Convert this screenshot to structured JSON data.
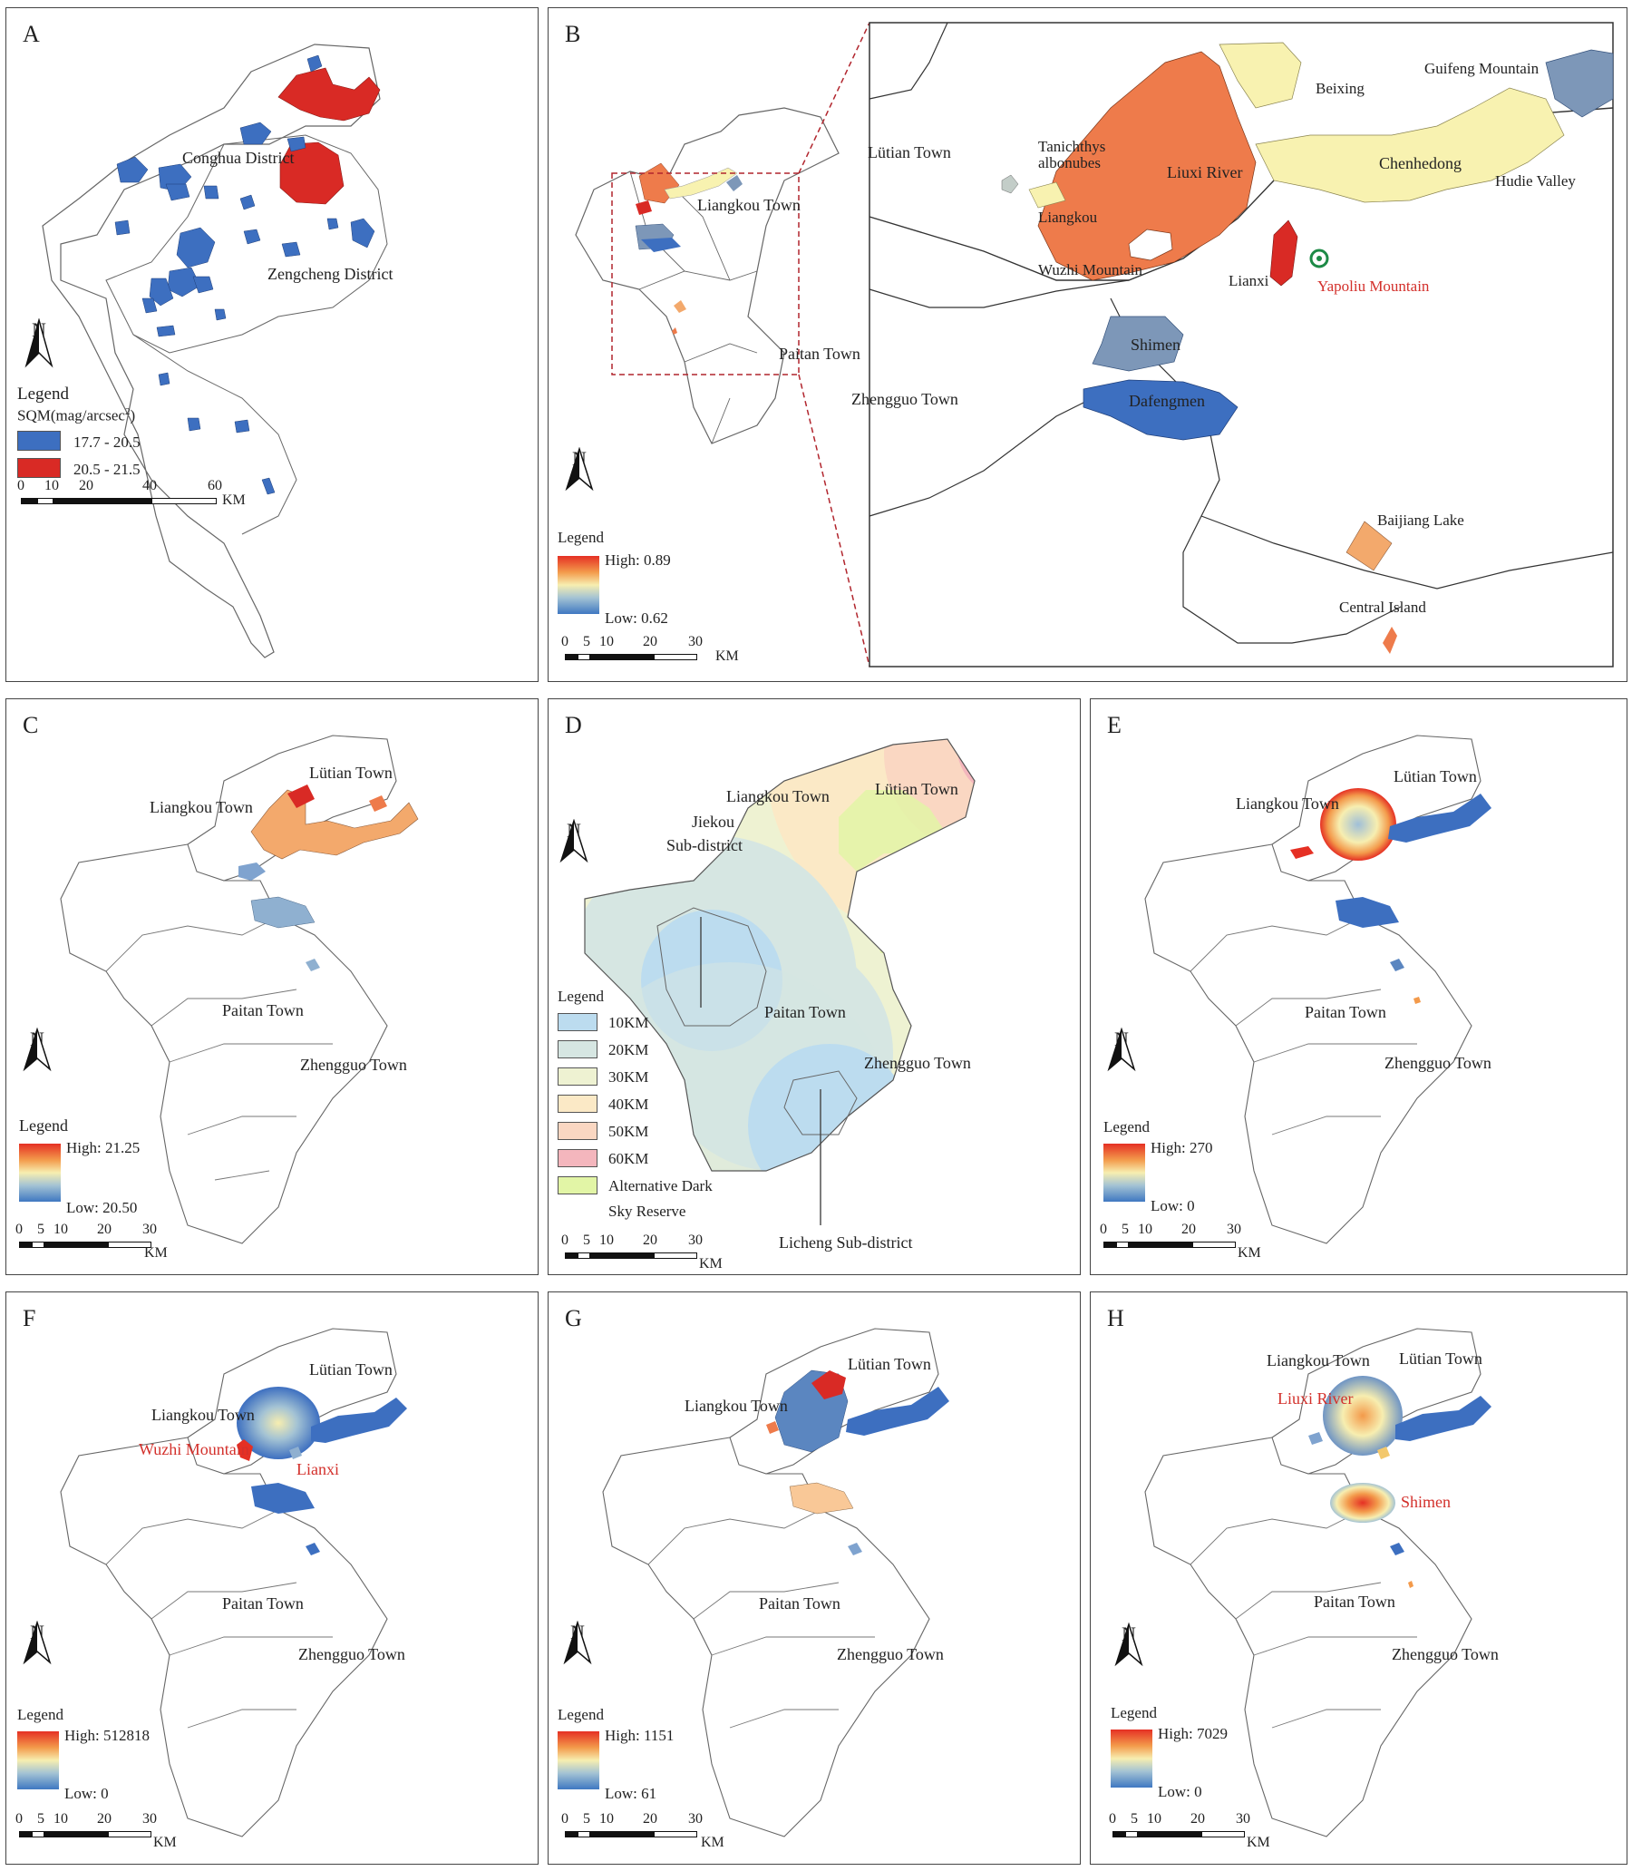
{
  "panels": {
    "A": {
      "label": "A",
      "places": [
        "Conghua District",
        "Zengcheng District"
      ],
      "legend": {
        "title": "Legend",
        "subtitle": "SQM(mag/arcsec",
        "sup": "2",
        "close": ")",
        "classes": [
          {
            "label": "17.7 - 20.5",
            "color": "#3d6fc0"
          },
          {
            "label": "20.5 - 21.5",
            "color": "#d92a25"
          }
        ]
      },
      "scale": {
        "ticks": [
          "0",
          "10",
          "20",
          "40",
          "60"
        ],
        "unit": "KM"
      }
    },
    "B": {
      "label": "B",
      "places": [
        "Lütian Town",
        "Liangkou Town",
        "Paitan Town",
        "Zhengguo Town"
      ],
      "inset_places": {
        "beixing": "Beixing",
        "guifeng": "Guifeng Mountain",
        "tanichthys1": "Tanichthys",
        "tanichthys2": "albonubes",
        "liuxi": "Liuxi River",
        "chenhedong": "Chenhedong",
        "hudie": "Hudie Valley",
        "liangkou": "Liangkou",
        "wuzhi": "Wuzhi Mountain",
        "lianxi": "Lianxi",
        "yapoliu": "Yapoliu Mountain",
        "shimen": "Shimen",
        "dafengmen": "Dafengmen",
        "baijiang": "Baijiang Lake",
        "central": "Central Island"
      },
      "legend": {
        "title": "Legend",
        "high": "High: 0.89",
        "low": "Low: 0.62"
      },
      "scale": {
        "ticks": [
          "0",
          "5",
          "10",
          "20",
          "30"
        ],
        "unit": "KM"
      }
    },
    "C": {
      "label": "C",
      "places": [
        "Lütian Town",
        "Liangkou Town",
        "Paitan Town",
        "Zhengguo Town"
      ],
      "legend": {
        "title": "Legend",
        "high": "High: 21.25",
        "low": "Low: 20.50"
      },
      "scale": {
        "ticks": [
          "0",
          "5",
          "10",
          "20",
          "30"
        ],
        "unit": "KM"
      }
    },
    "D": {
      "label": "D",
      "places": [
        "Liangkou Town",
        "Lütian Town",
        "Jiekou",
        "Sub-district",
        "Paitan Town",
        "Zhengguo Town",
        "Licheng Sub-district"
      ],
      "legend": {
        "title": "Legend",
        "classes": [
          {
            "label": "10KM",
            "color": "#bcdcef"
          },
          {
            "label": "20KM",
            "color": "#d6e6e2"
          },
          {
            "label": "30KM",
            "color": "#eef2d2"
          },
          {
            "label": "40KM",
            "color": "#fbe9c6"
          },
          {
            "label": "50KM",
            "color": "#fad7c2"
          },
          {
            "label": "60KM",
            "color": "#f4b6bd"
          },
          {
            "label": "Alternative Dark",
            "label2": "Sky Reserve",
            "color": "#e2f5a6"
          }
        ]
      },
      "scale": {
        "ticks": [
          "0",
          "5",
          "10",
          "20",
          "30"
        ],
        "unit": "KM"
      }
    },
    "E": {
      "label": "E",
      "places": [
        "Lütian Town",
        "Liangkou Town",
        "Paitan Town",
        "Zhengguo Town"
      ],
      "legend": {
        "title": "Legend",
        "high": "High: 270",
        "low": "Low: 0"
      },
      "scale": {
        "ticks": [
          "0",
          "5",
          "10",
          "20",
          "30"
        ],
        "unit": "KM"
      }
    },
    "F": {
      "label": "F",
      "places": [
        "Lütian Town",
        "Liangkou Town",
        "Wuzhi Mountain",
        "Lianxi",
        "Paitan Town",
        "Zhengguo Town"
      ],
      "legend": {
        "title": "Legend",
        "high": "High: 512818",
        "low": "Low: 0"
      },
      "scale": {
        "ticks": [
          "0",
          "5",
          "10",
          "20",
          "30"
        ],
        "unit": "KM"
      }
    },
    "G": {
      "label": "G",
      "places": [
        "Lütian Town",
        "Liangkou Town",
        "Paitan Town",
        "Zhengguo Town"
      ],
      "legend": {
        "title": "Legend",
        "high": "High: 1151",
        "low": "Low: 61"
      },
      "scale": {
        "ticks": [
          "0",
          "5",
          "10",
          "20",
          "30"
        ],
        "unit": "KM"
      }
    },
    "H": {
      "label": "H",
      "places": [
        "Liangkou Town",
        "Lütian Town",
        "Liuxi River",
        "Shimen",
        "Paitan Town",
        "Zhengguo Town"
      ],
      "legend": {
        "title": "Legend",
        "high": "High: 7029",
        "low": "Low: 0"
      },
      "scale": {
        "ticks": [
          "0",
          "5",
          "10",
          "20",
          "30"
        ],
        "unit": "KM"
      }
    }
  },
  "north_label": "N",
  "colors": {
    "blue": "#3d6fc0",
    "red": "#d92a25",
    "orange": "#ee7b4b",
    "yellow": "#f8f2b0",
    "steel": "#7d97b8"
  }
}
